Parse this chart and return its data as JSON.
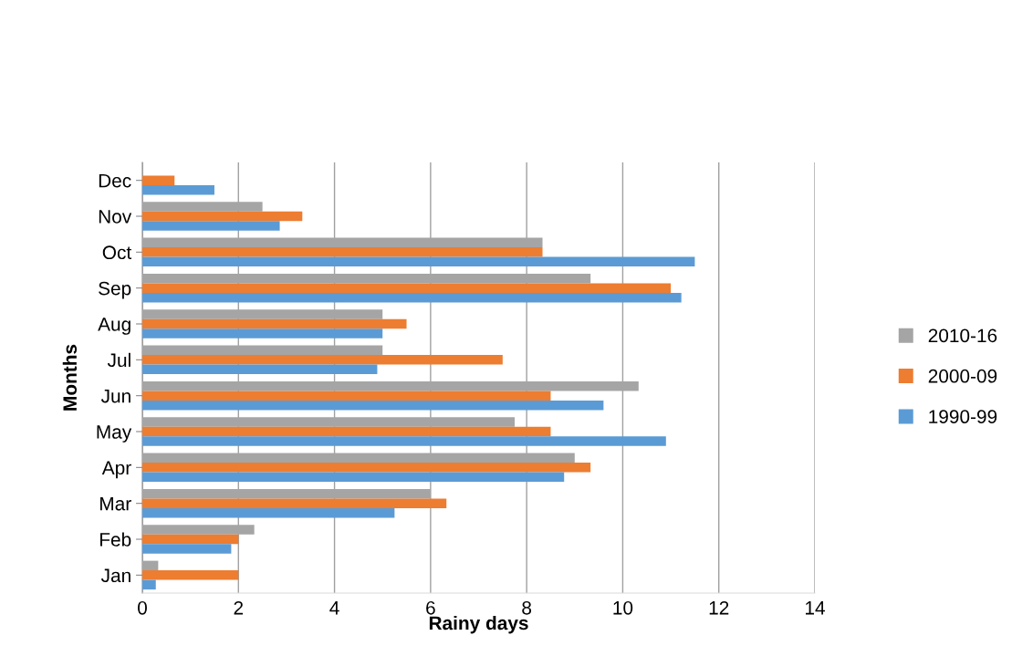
{
  "chart_data": {
    "type": "bar",
    "orientation": "horizontal",
    "xlabel": "Rainy days",
    "ylabel": "Months",
    "categories": [
      "Dec",
      "Nov",
      "Oct",
      "Sep",
      "Aug",
      "Jul",
      "Jun",
      "May",
      "Apr",
      "Mar",
      "Feb",
      "Jan"
    ],
    "series": [
      {
        "name": "2010-16",
        "color": "#a5a5a5",
        "values": [
          0,
          2.5,
          8.33,
          9.33,
          5,
          5,
          10.33,
          7.75,
          9,
          6,
          2.33,
          0.33
        ]
      },
      {
        "name": "2000-09",
        "color": "#ed7d31",
        "values": [
          0.67,
          3.33,
          8.33,
          11,
          5.5,
          7.5,
          8.5,
          8.5,
          9.33,
          6.33,
          2,
          2
        ]
      },
      {
        "name": "1990-99",
        "color": "#5b9bd5",
        "values": [
          1.5,
          2.86,
          11.5,
          11.22,
          5,
          4.89,
          9.6,
          10.9,
          8.78,
          5.25,
          1.85,
          0.28
        ]
      }
    ],
    "xlim": [
      0,
      14
    ],
    "xticks": [
      0,
      2,
      4,
      6,
      8,
      10,
      12,
      14
    ],
    "grid": "x",
    "legend": "right"
  }
}
